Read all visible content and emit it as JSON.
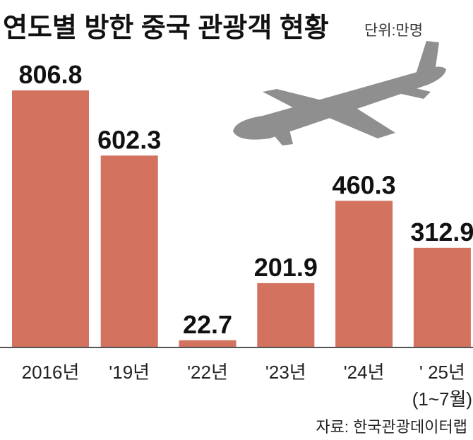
{
  "chart_data": {
    "type": "bar",
    "title": "연도별 방한 중국 관광객 현황",
    "unit": "단위:만명",
    "categories": [
      "2016년",
      "'19년",
      "'22년",
      "'23년",
      "'24년",
      "' 25년"
    ],
    "category_note": "(1~7월)",
    "values": [
      806.8,
      602.3,
      22.7,
      201.9,
      460.3,
      312.9
    ],
    "color": "#d3725f",
    "source": "자료: 한국관광데이터랩"
  }
}
